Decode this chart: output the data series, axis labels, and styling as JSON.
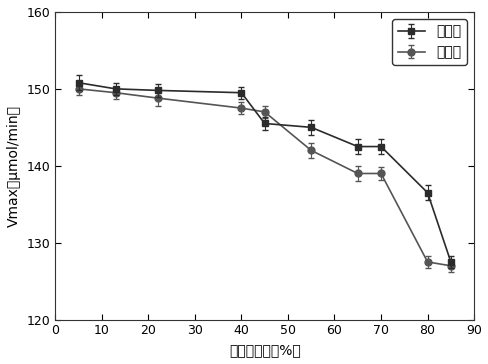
{
  "series1_label": "第一遍",
  "series2_label": "第二遍",
  "series1_x": [
    5,
    13,
    22,
    40,
    45,
    55,
    65,
    70,
    80,
    85
  ],
  "series1_y": [
    150.8,
    150.0,
    149.8,
    149.5,
    145.5,
    145.0,
    142.5,
    142.5,
    136.5,
    127.5
  ],
  "series1_yerr": [
    1.0,
    0.8,
    0.8,
    0.8,
    0.8,
    1.0,
    1.0,
    1.0,
    1.0,
    0.8
  ],
  "series2_x": [
    5,
    13,
    22,
    40,
    45,
    55,
    65,
    70,
    80,
    85
  ],
  "series2_y": [
    150.0,
    149.5,
    148.8,
    147.5,
    147.0,
    142.0,
    139.0,
    139.0,
    127.5,
    127.0
  ],
  "series2_yerr": [
    0.8,
    0.8,
    1.0,
    0.8,
    0.8,
    1.0,
    1.0,
    0.8,
    0.8,
    0.8
  ],
  "xlabel": "表观发酵度（%）",
  "ylabel": "Vmax（μmol/min）",
  "xlim": [
    0,
    90
  ],
  "ylim": [
    120,
    160
  ],
  "xticks": [
    0,
    10,
    20,
    30,
    40,
    50,
    60,
    70,
    80,
    90
  ],
  "yticks": [
    120,
    130,
    140,
    150,
    160
  ],
  "color1": "#2b2b2b",
  "color2": "#555555",
  "marker1": "s",
  "marker2": "o",
  "linewidth": 1.2,
  "markersize": 5,
  "capsize": 2.5,
  "legend_loc": "upper right",
  "background_color": "#ffffff",
  "figsize": [
    4.89,
    3.64
  ],
  "dpi": 100
}
